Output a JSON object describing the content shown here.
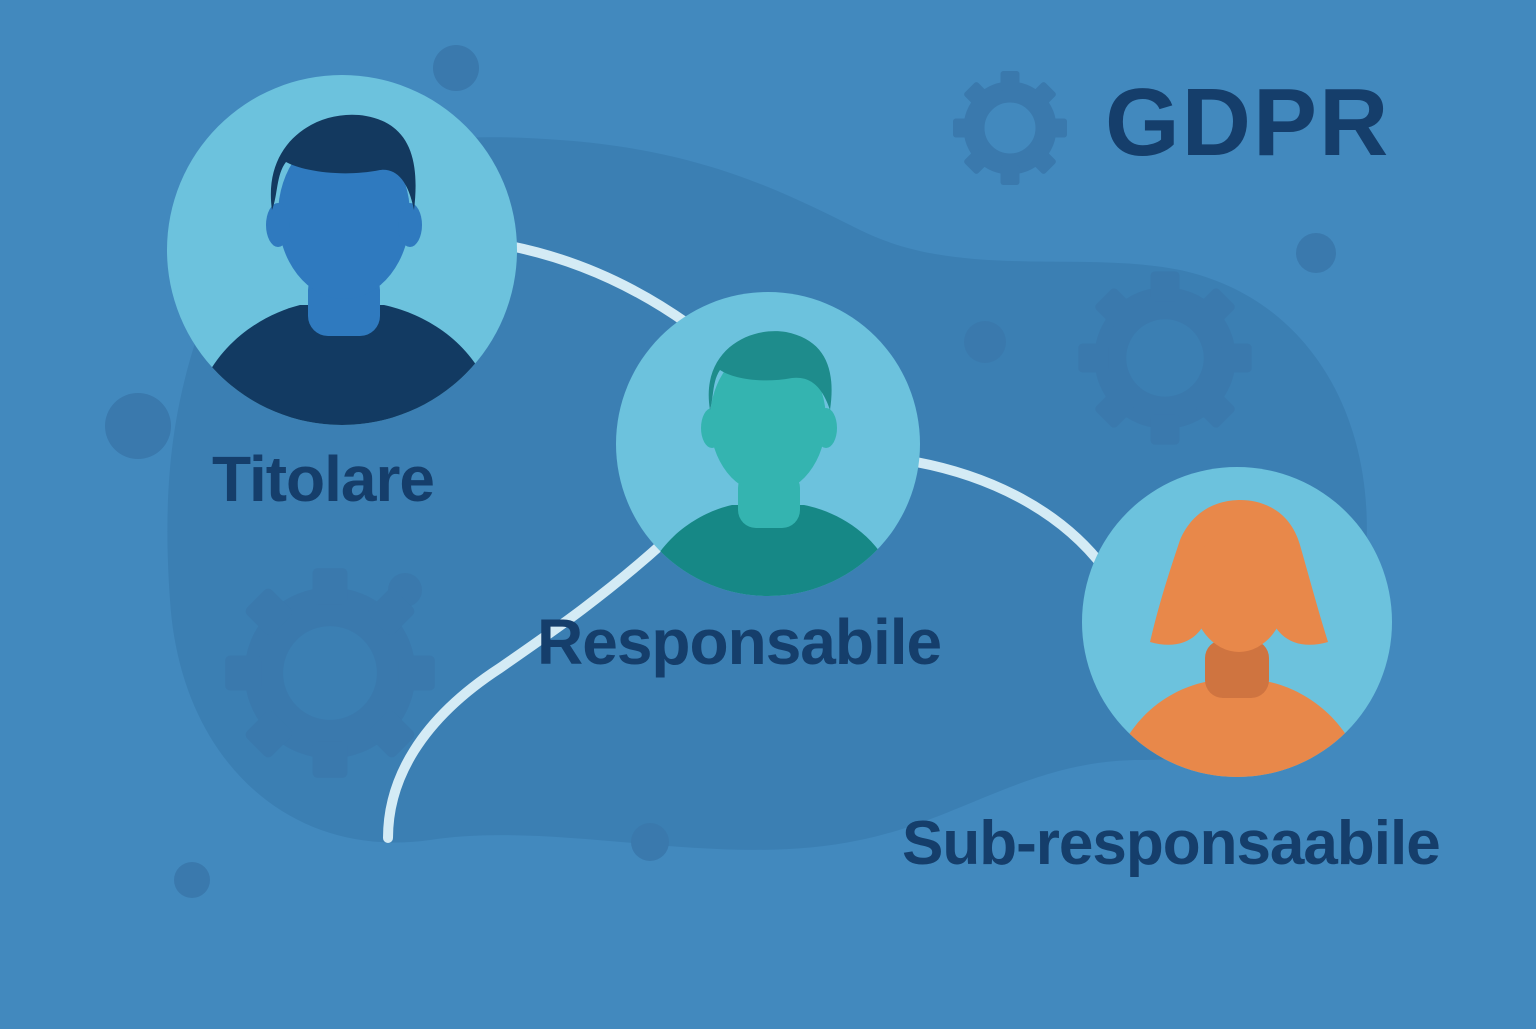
{
  "title": "GDPR",
  "roles": [
    {
      "id": "titolare",
      "label": "Titolare",
      "avatar": "man-avatar-icon"
    },
    {
      "id": "responsabile",
      "label": "Responsabile",
      "avatar": "man-avatar-icon"
    },
    {
      "id": "sub",
      "label": "Sub-responsaabile",
      "avatar": "woman-avatar-icon"
    }
  ],
  "colors": {
    "background": "#4289be",
    "blob": "#3b7fb3",
    "decor": "#3a79ad",
    "circle_fill": "#6cc2dd",
    "text": "#153e6b",
    "connector": "#d4ebf5",
    "titolare_head": "#2f7abf",
    "titolare_hair": "#13395f",
    "titolare_shirt": "#123a62",
    "responsabile_head": "#34b4b0",
    "responsabile_hair": "#1e8c8c",
    "responsabile_shirt": "#168886",
    "sub_skin": "#e8884a",
    "sub_neck": "#cf7440"
  }
}
